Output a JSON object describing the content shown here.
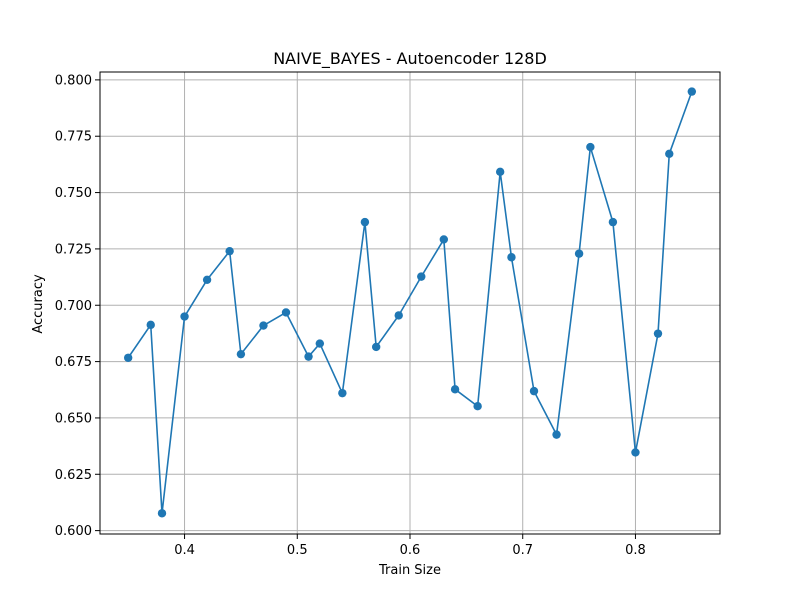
{
  "chart_data": {
    "type": "line",
    "title": "NAIVE_BAYES - Autoencoder 128D",
    "xlabel": "Train Size",
    "ylabel": "Accuracy",
    "xlim": [
      0.325,
      0.875
    ],
    "ylim": [
      0.5985,
      0.8035
    ],
    "xticks": [
      0.4,
      0.5,
      0.6,
      0.7,
      0.8
    ],
    "xtick_labels": [
      "0.4",
      "0.5",
      "0.6",
      "0.7",
      "0.8"
    ],
    "yticks": [
      0.6,
      0.625,
      0.65,
      0.675,
      0.7,
      0.725,
      0.75,
      0.775,
      0.8
    ],
    "ytick_labels": [
      "0.600",
      "0.625",
      "0.650",
      "0.675",
      "0.700",
      "0.725",
      "0.750",
      "0.775",
      "0.800"
    ],
    "grid": true,
    "series": [
      {
        "color": "#1f77b4",
        "marker": "circle",
        "x": [
          0.35,
          0.37,
          0.38,
          0.4,
          0.42,
          0.44,
          0.45,
          0.47,
          0.49,
          0.51,
          0.52,
          0.54,
          0.56,
          0.57,
          0.59,
          0.61,
          0.63,
          0.64,
          0.66,
          0.68,
          0.69,
          0.71,
          0.73,
          0.75,
          0.76,
          0.78,
          0.8,
          0.82,
          0.83,
          0.85
        ],
        "y": [
          0.6767,
          0.6913,
          0.6077,
          0.695,
          0.7113,
          0.724,
          0.6783,
          0.691,
          0.6968,
          0.6772,
          0.683,
          0.661,
          0.7369,
          0.6815,
          0.6955,
          0.7127,
          0.7292,
          0.6627,
          0.6552,
          0.7592,
          0.7213,
          0.6619,
          0.6426,
          0.7229,
          0.7702,
          0.7369,
          0.6347,
          0.6874,
          0.7672,
          0.7948
        ]
      }
    ]
  }
}
